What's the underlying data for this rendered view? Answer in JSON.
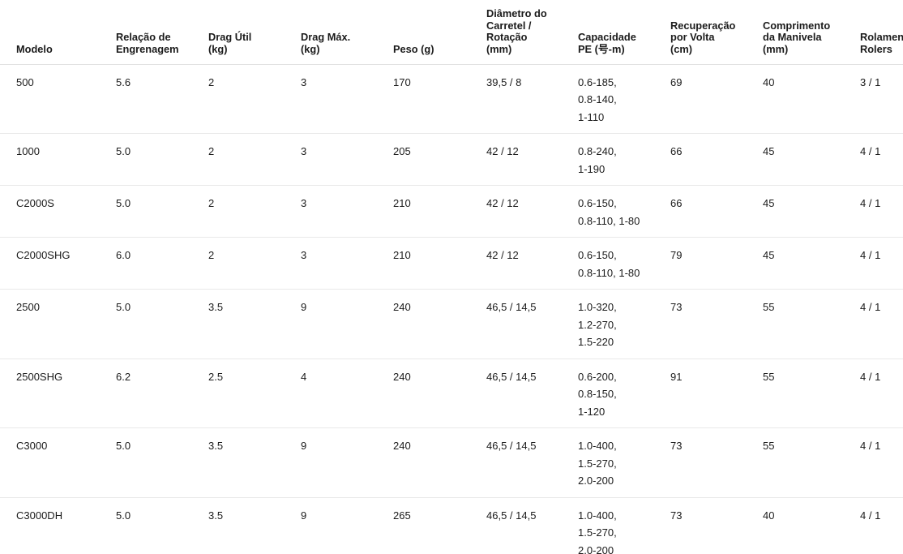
{
  "page": {
    "background_color": "#ffffff",
    "text_color": "#1b1b1b",
    "divider_color": "#e9e9e9"
  },
  "table": {
    "columns": [
      {
        "id": "modelo",
        "label": "Modelo"
      },
      {
        "id": "relacao",
        "label": "Relação de\nEngrenagem"
      },
      {
        "id": "drag_util",
        "label": "Drag Útil\n(kg)"
      },
      {
        "id": "drag_max",
        "label": "Drag Máx.\n(kg)"
      },
      {
        "id": "peso",
        "label": "Peso (g)"
      },
      {
        "id": "diametro",
        "label": "Diâmetro do\nCarretel /\nRotação\n(mm)"
      },
      {
        "id": "capacidade",
        "label": "Capacidade\nPE (号-m)"
      },
      {
        "id": "recuperacao",
        "label": "Recuperação\npor Volta\n(cm)"
      },
      {
        "id": "comprimento",
        "label": "Comprimento\nda Manivela\n(mm)"
      },
      {
        "id": "rolamentos",
        "label": "Rolamentos\nRolers"
      }
    ],
    "rows": [
      {
        "modelo": "500",
        "relacao": "5.6",
        "drag_util": "2",
        "drag_max": "3",
        "peso": "170",
        "diametro": "39,5 / 8",
        "capacidade": "0.6-185,\n0.8-140,\n1-110",
        "recuperacao": "69",
        "comprimento": "40",
        "rolamentos": "3 / 1"
      },
      {
        "modelo": "1000",
        "relacao": "5.0",
        "drag_util": "2",
        "drag_max": "3",
        "peso": "205",
        "diametro": "42 / 12",
        "capacidade": "0.8-240,\n1-190",
        "recuperacao": "66",
        "comprimento": "45",
        "rolamentos": "4 / 1"
      },
      {
        "modelo": "C2000S",
        "relacao": "5.0",
        "drag_util": "2",
        "drag_max": "3",
        "peso": "210",
        "diametro": "42 / 12",
        "capacidade": "0.6-150,\n0.8-110, 1-80",
        "recuperacao": "66",
        "comprimento": "45",
        "rolamentos": "4 / 1"
      },
      {
        "modelo": "C2000SHG",
        "relacao": "6.0",
        "drag_util": "2",
        "drag_max": "3",
        "peso": "210",
        "diametro": "42 / 12",
        "capacidade": "0.6-150,\n0.8-110, 1-80",
        "recuperacao": "79",
        "comprimento": "45",
        "rolamentos": "4 / 1"
      },
      {
        "modelo": "2500",
        "relacao": "5.0",
        "drag_util": "3.5",
        "drag_max": "9",
        "peso": "240",
        "diametro": "46,5 / 14,5",
        "capacidade": "1.0-320,\n1.2-270,\n1.5-220",
        "recuperacao": "73",
        "comprimento": "55",
        "rolamentos": "4 / 1"
      },
      {
        "modelo": "2500SHG",
        "relacao": "6.2",
        "drag_util": "2.5",
        "drag_max": "4",
        "peso": "240",
        "diametro": "46,5 / 14,5",
        "capacidade": "0.6-200,\n0.8-150,\n1-120",
        "recuperacao": "91",
        "comprimento": "55",
        "rolamentos": "4 / 1"
      },
      {
        "modelo": "C3000",
        "relacao": "5.0",
        "drag_util": "3.5",
        "drag_max": "9",
        "peso": "240",
        "diametro": "46,5 / 14,5",
        "capacidade": "1.0-400,\n1.5-270,\n2.0-200",
        "recuperacao": "73",
        "comprimento": "55",
        "rolamentos": "4 / 1"
      },
      {
        "modelo": "C3000DH",
        "relacao": "5.0",
        "drag_util": "3.5",
        "drag_max": "9",
        "peso": "265",
        "diametro": "46,5 / 14,5",
        "capacidade": "1.0-400,\n1.5-270,\n2.0-200",
        "recuperacao": "73",
        "comprimento": "40",
        "rolamentos": "4 / 1"
      }
    ]
  }
}
